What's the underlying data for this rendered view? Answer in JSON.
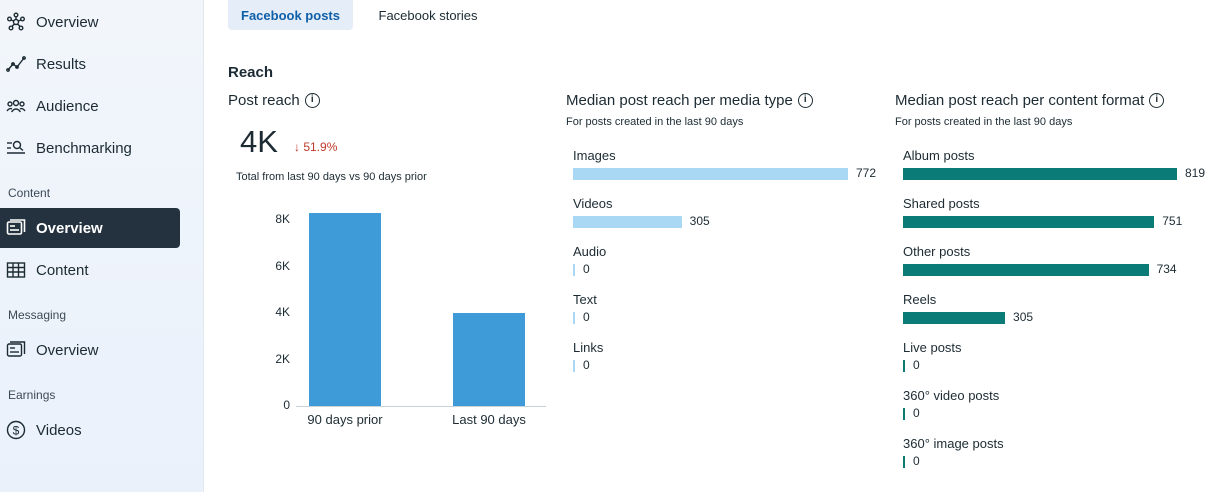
{
  "sidebar": {
    "items": [
      {
        "label": "Overview",
        "icon": "network-icon"
      },
      {
        "label": "Results",
        "icon": "trend-icon"
      },
      {
        "label": "Audience",
        "icon": "people-icon"
      },
      {
        "label": "Benchmarking",
        "icon": "search-list-icon"
      }
    ],
    "content_section": "Content",
    "content_items": [
      {
        "label": "Overview",
        "icon": "post-icon",
        "active": true
      },
      {
        "label": "Content",
        "icon": "table-icon"
      }
    ],
    "messaging_section": "Messaging",
    "messaging_items": [
      {
        "label": "Overview",
        "icon": "message-icon"
      }
    ],
    "earnings_section": "Earnings",
    "earnings_items": [
      {
        "label": "Videos",
        "icon": "dollar-icon"
      }
    ]
  },
  "tabs": [
    {
      "label": "Facebook posts",
      "active": true
    },
    {
      "label": "Facebook stories",
      "active": false
    }
  ],
  "reach": {
    "title": "Reach",
    "post_reach_title": "Post reach",
    "value": "4K",
    "delta": "↓ 51.9%",
    "total_note": "Total from last 90 days vs 90 days prior"
  },
  "media_type": {
    "title": "Median post reach per media type",
    "subtitle": "For posts created in the last 90 days"
  },
  "content_format": {
    "title": "Median post reach per content format",
    "subtitle": "For posts created in the last 90 days"
  },
  "chart_data": [
    {
      "type": "bar",
      "title": "Post reach",
      "categories": [
        "90 days prior",
        "Last 90 days"
      ],
      "values": [
        8300,
        4000
      ],
      "yticks": [
        "0",
        "2K",
        "4K",
        "6K",
        "8K"
      ],
      "ylim": [
        0,
        8500
      ],
      "color": "#3f9bd8"
    },
    {
      "type": "bar",
      "orientation": "horizontal",
      "title": "Median post reach per media type",
      "categories": [
        "Images",
        "Videos",
        "Audio",
        "Text",
        "Links"
      ],
      "values": [
        772,
        305,
        0,
        0,
        0
      ],
      "labels": [
        "772",
        "305",
        "0",
        "0",
        "0"
      ],
      "color": "#a8d8f4"
    },
    {
      "type": "bar",
      "orientation": "horizontal",
      "title": "Median post reach per content format",
      "categories": [
        "Album posts",
        "Shared posts",
        "Other posts",
        "Reels",
        "Live posts",
        "360° video posts",
        "360° image posts"
      ],
      "values": [
        819,
        751,
        734,
        305,
        0,
        0,
        0
      ],
      "labels": [
        "819",
        "751",
        "734",
        "305",
        "0",
        "0",
        "0"
      ],
      "color": "#0b7b78"
    }
  ]
}
